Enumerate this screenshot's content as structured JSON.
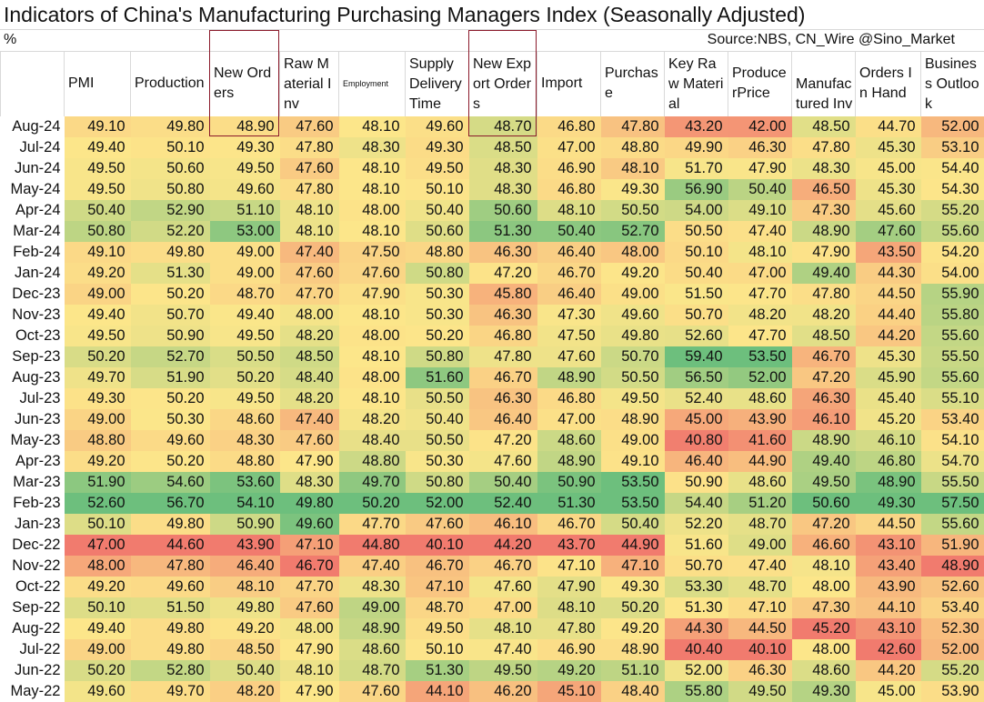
{
  "title": "Indicators of China's Manufacturing Purchasing Managers Index (Seasonally Adjusted)",
  "unit": "%",
  "source": "Source:NBS, CN_Wire @Sino_Market",
  "chart_data": {
    "type": "heatmap",
    "title": "Indicators of China's Manufacturing Purchasing Managers Index (Seasonally Adjusted)",
    "color_scale": {
      "low": "#F17B6E",
      "mid": "#FCE68A",
      "high": "#6DBF7D"
    },
    "highlighted_columns": [
      "New Orders",
      "New Export Orders"
    ],
    "columns": [
      "PMI",
      "Production",
      "New Orders",
      "Raw Material Inv",
      "Employment",
      "Supply Delivery Time",
      "New Export Orders",
      "Import",
      "Purchase",
      "Key Raw Material",
      "ProducerPrice",
      "Manufactured Inv",
      "Orders In Hand",
      "Business Outlook"
    ],
    "rows": [
      {
        "date": "Aug-24",
        "values": [
          "49.10",
          "49.80",
          "48.90",
          "47.60",
          "48.10",
          "49.60",
          "48.70",
          "46.80",
          "47.80",
          "43.20",
          "42.00",
          "48.50",
          "44.70",
          "52.00"
        ]
      },
      {
        "date": "Jul-24",
        "values": [
          "49.40",
          "50.10",
          "49.30",
          "47.80",
          "48.30",
          "49.30",
          "48.50",
          "47.00",
          "48.80",
          "49.90",
          "46.30",
          "47.80",
          "45.30",
          "53.10"
        ]
      },
      {
        "date": "Jun-24",
        "values": [
          "49.50",
          "50.60",
          "49.50",
          "47.60",
          "48.10",
          "49.50",
          "48.30",
          "46.90",
          "48.10",
          "51.70",
          "47.90",
          "48.30",
          "45.00",
          "54.40"
        ]
      },
      {
        "date": "May-24",
        "values": [
          "49.50",
          "50.80",
          "49.60",
          "47.80",
          "48.10",
          "50.10",
          "48.30",
          "46.80",
          "49.30",
          "56.90",
          "50.40",
          "46.50",
          "45.30",
          "54.30"
        ]
      },
      {
        "date": "Apr-24",
        "values": [
          "50.40",
          "52.90",
          "51.10",
          "48.10",
          "48.00",
          "50.40",
          "50.60",
          "48.10",
          "50.50",
          "54.00",
          "49.10",
          "47.30",
          "45.60",
          "55.20"
        ]
      },
      {
        "date": "Mar-24",
        "values": [
          "50.80",
          "52.20",
          "53.00",
          "48.10",
          "48.10",
          "50.60",
          "51.30",
          "50.40",
          "52.70",
          "50.50",
          "47.40",
          "48.90",
          "47.60",
          "55.60"
        ]
      },
      {
        "date": "Feb-24",
        "values": [
          "49.10",
          "49.80",
          "49.00",
          "47.40",
          "47.50",
          "48.80",
          "46.30",
          "46.40",
          "48.00",
          "50.10",
          "48.10",
          "47.90",
          "43.50",
          "54.20"
        ]
      },
      {
        "date": "Jan-24",
        "values": [
          "49.20",
          "51.30",
          "49.00",
          "47.60",
          "47.60",
          "50.80",
          "47.20",
          "46.70",
          "49.20",
          "50.40",
          "47.00",
          "49.40",
          "44.30",
          "54.00"
        ]
      },
      {
        "date": "Dec-23",
        "values": [
          "49.00",
          "50.20",
          "48.70",
          "47.70",
          "47.90",
          "50.30",
          "45.80",
          "46.40",
          "49.00",
          "51.50",
          "47.70",
          "47.80",
          "44.50",
          "55.90"
        ]
      },
      {
        "date": "Nov-23",
        "values": [
          "49.40",
          "50.70",
          "49.40",
          "48.00",
          "48.10",
          "50.30",
          "46.30",
          "47.30",
          "49.60",
          "50.70",
          "48.20",
          "48.20",
          "44.40",
          "55.80"
        ]
      },
      {
        "date": "Oct-23",
        "values": [
          "49.50",
          "50.90",
          "49.50",
          "48.20",
          "48.00",
          "50.20",
          "46.80",
          "47.50",
          "49.80",
          "52.60",
          "47.70",
          "48.50",
          "44.20",
          "55.60"
        ]
      },
      {
        "date": "Sep-23",
        "values": [
          "50.20",
          "52.70",
          "50.50",
          "48.50",
          "48.10",
          "50.80",
          "47.80",
          "47.60",
          "50.70",
          "59.40",
          "53.50",
          "46.70",
          "45.30",
          "55.50"
        ]
      },
      {
        "date": "Aug-23",
        "values": [
          "49.70",
          "51.90",
          "50.20",
          "48.40",
          "48.00",
          "51.60",
          "46.70",
          "48.90",
          "50.50",
          "56.50",
          "52.00",
          "47.20",
          "45.90",
          "55.60"
        ]
      },
      {
        "date": "Jul-23",
        "values": [
          "49.30",
          "50.20",
          "49.50",
          "48.20",
          "48.10",
          "50.50",
          "46.30",
          "46.80",
          "49.50",
          "52.40",
          "48.60",
          "46.30",
          "45.40",
          "55.10"
        ]
      },
      {
        "date": "Jun-23",
        "values": [
          "49.00",
          "50.30",
          "48.60",
          "47.40",
          "48.20",
          "50.40",
          "46.40",
          "47.00",
          "48.90",
          "45.00",
          "43.90",
          "46.10",
          "45.20",
          "53.40"
        ]
      },
      {
        "date": "May-23",
        "values": [
          "48.80",
          "49.60",
          "48.30",
          "47.60",
          "48.40",
          "50.50",
          "47.20",
          "48.60",
          "49.00",
          "40.80",
          "41.60",
          "48.90",
          "46.10",
          "54.10"
        ]
      },
      {
        "date": "Apr-23",
        "values": [
          "49.20",
          "50.20",
          "48.80",
          "47.90",
          "48.80",
          "50.30",
          "47.60",
          "48.90",
          "49.10",
          "46.40",
          "44.90",
          "49.40",
          "46.80",
          "54.70"
        ]
      },
      {
        "date": "Mar-23",
        "values": [
          "51.90",
          "54.60",
          "53.60",
          "48.30",
          "49.70",
          "50.80",
          "50.40",
          "50.90",
          "53.50",
          "50.90",
          "48.60",
          "49.50",
          "48.90",
          "55.50"
        ]
      },
      {
        "date": "Feb-23",
        "values": [
          "52.60",
          "56.70",
          "54.10",
          "49.80",
          "50.20",
          "52.00",
          "52.40",
          "51.30",
          "53.50",
          "54.40",
          "51.20",
          "50.60",
          "49.30",
          "57.50"
        ]
      },
      {
        "date": "Jan-23",
        "values": [
          "50.10",
          "49.80",
          "50.90",
          "49.60",
          "47.70",
          "47.60",
          "46.10",
          "46.70",
          "50.40",
          "52.20",
          "48.70",
          "47.20",
          "44.50",
          "55.60"
        ]
      },
      {
        "date": "Dec-22",
        "values": [
          "47.00",
          "44.60",
          "43.90",
          "47.10",
          "44.80",
          "40.10",
          "44.20",
          "43.70",
          "44.90",
          "51.60",
          "49.00",
          "46.60",
          "43.10",
          "51.90"
        ]
      },
      {
        "date": "Nov-22",
        "values": [
          "48.00",
          "47.80",
          "46.40",
          "46.70",
          "47.40",
          "46.70",
          "46.70",
          "47.10",
          "47.10",
          "50.70",
          "47.40",
          "48.10",
          "43.40",
          "48.90"
        ]
      },
      {
        "date": "Oct-22",
        "values": [
          "49.20",
          "49.60",
          "48.10",
          "47.70",
          "48.30",
          "47.10",
          "47.60",
          "47.90",
          "49.30",
          "53.30",
          "48.70",
          "48.00",
          "43.90",
          "52.60"
        ]
      },
      {
        "date": "Sep-22",
        "values": [
          "50.10",
          "51.50",
          "49.80",
          "47.60",
          "49.00",
          "48.70",
          "47.00",
          "48.10",
          "50.20",
          "51.30",
          "47.10",
          "47.30",
          "44.10",
          "53.40"
        ]
      },
      {
        "date": "Aug-22",
        "values": [
          "49.40",
          "49.80",
          "49.20",
          "48.00",
          "48.90",
          "49.50",
          "48.10",
          "47.80",
          "49.20",
          "44.30",
          "44.50",
          "45.20",
          "43.10",
          "52.30"
        ]
      },
      {
        "date": "Jul-22",
        "values": [
          "49.00",
          "49.80",
          "48.50",
          "47.90",
          "48.60",
          "50.10",
          "47.40",
          "46.90",
          "48.90",
          "40.40",
          "40.10",
          "48.00",
          "42.60",
          "52.00"
        ]
      },
      {
        "date": "Jun-22",
        "values": [
          "50.20",
          "52.80",
          "50.40",
          "48.10",
          "48.70",
          "51.30",
          "49.50",
          "49.20",
          "51.10",
          "52.00",
          "46.30",
          "48.60",
          "44.20",
          "55.20"
        ]
      },
      {
        "date": "May-22",
        "values": [
          "49.60",
          "49.70",
          "48.20",
          "47.90",
          "47.60",
          "44.10",
          "46.20",
          "45.10",
          "48.40",
          "55.80",
          "49.50",
          "49.30",
          "45.00",
          "53.90"
        ]
      }
    ]
  }
}
